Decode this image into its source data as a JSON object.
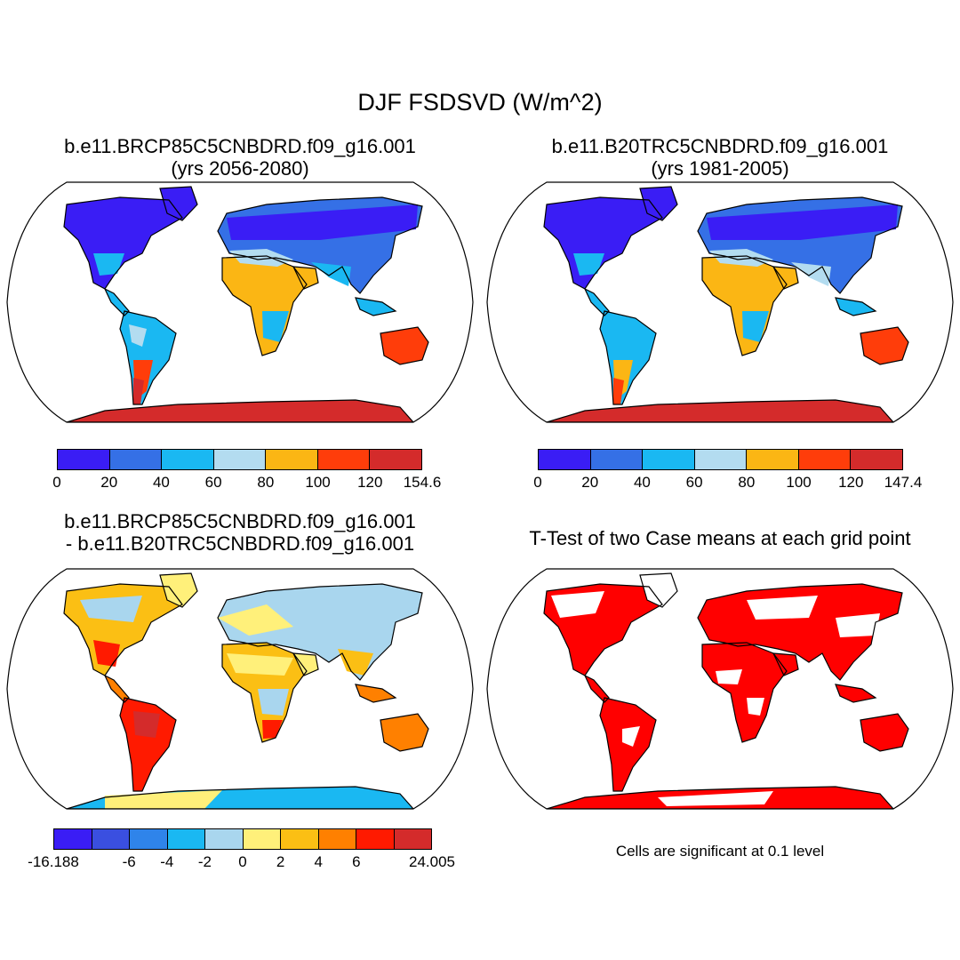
{
  "title": "DJF FSDSVD (W/m^2)",
  "panels": [
    {
      "id": "test",
      "title_line1": "b.e11.BRCP85C5CNBDRD.f09_g16.001",
      "title_line2": "(yrs 2056-2080)",
      "colorbar": {
        "colors": [
          "#3a1df5",
          "#3570e6",
          "#1ab8f2",
          "#b3dcf0",
          "#fbb614",
          "#ff3d0a",
          "#d42b2b"
        ],
        "labels": [
          "0",
          "20",
          "40",
          "60",
          "80",
          "100",
          "120",
          "154.6"
        ]
      }
    },
    {
      "id": "control",
      "title_line1": "b.e11.B20TRC5CNBDRD.f09_g16.001",
      "title_line2": "(yrs 1981-2005)",
      "colorbar": {
        "colors": [
          "#3a1df5",
          "#3570e6",
          "#1ab8f2",
          "#b3dcf0",
          "#fbb614",
          "#ff3d0a",
          "#d42b2b"
        ],
        "labels": [
          "0",
          "20",
          "40",
          "60",
          "80",
          "100",
          "120",
          "147.4"
        ]
      }
    },
    {
      "id": "difference",
      "title_line1": "b.e11.BRCP85C5CNBDRD.f09_g16.001",
      "title_line2": "- b.e11.B20TRC5CNBDRD.f09_g16.001",
      "colorbar": {
        "colors": [
          "#3a1df5",
          "#3a4fe0",
          "#2f84ea",
          "#1ab8f2",
          "#a9d6ee",
          "#fff07a",
          "#fbbf14",
          "#ff8000",
          "#ff1a00",
          "#d42b2b"
        ],
        "labels": [
          "-16.188",
          "",
          "-6",
          "-4",
          "-2",
          "0",
          "2",
          "4",
          "6",
          "",
          "24.005"
        ]
      }
    },
    {
      "id": "ttest",
      "title_line1": "T-Test of two Case means at each grid point",
      "title_line2": "",
      "note": "Cells are significant at 0.1 level",
      "significant_color": "#ff0000"
    }
  ]
}
